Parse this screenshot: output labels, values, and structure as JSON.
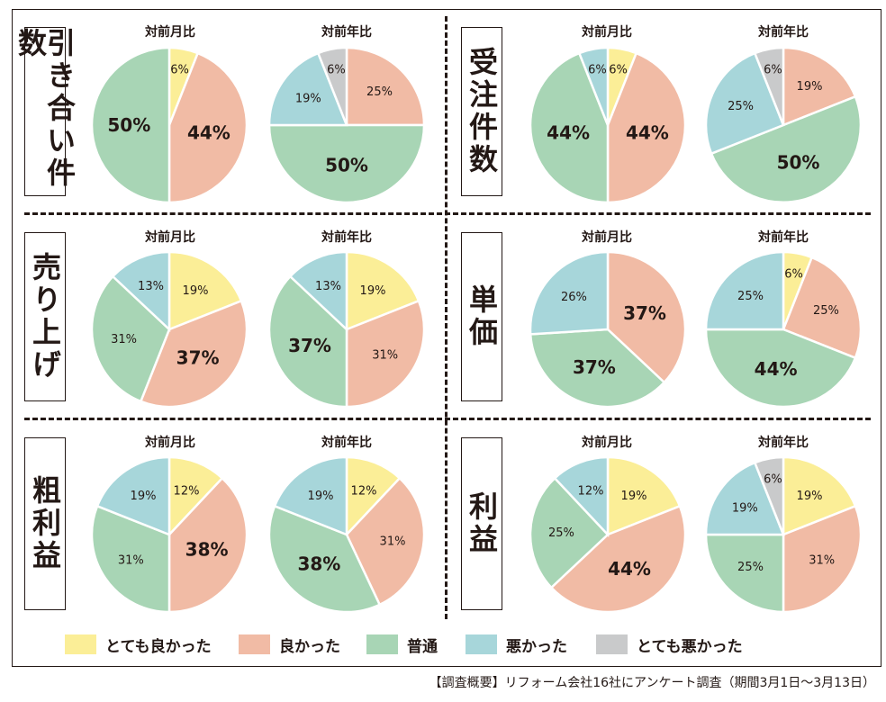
{
  "colors": {
    "very_good": "#fbee97",
    "good": "#f1bba5",
    "normal": "#a8d5b5",
    "bad": "#a7d6da",
    "very_bad": "#c9cacb"
  },
  "legend": [
    {
      "key": "very_good",
      "label": "とても良かった"
    },
    {
      "key": "good",
      "label": "良かった"
    },
    {
      "key": "normal",
      "label": "普通"
    },
    {
      "key": "bad",
      "label": "悪かった"
    },
    {
      "key": "very_bad",
      "label": "とても悪かった"
    }
  ],
  "footnote": "【調査概要】リフォーム会社16社にアンケート調査（期間3月1日～3月13日）",
  "chart_data": [
    {
      "type": "pie",
      "metric": "引き合い件数",
      "title": "対前月比",
      "slices": [
        {
          "key": "very_good",
          "value": 6,
          "label": "6%"
        },
        {
          "key": "good",
          "value": 44,
          "label": "44%"
        },
        {
          "key": "normal",
          "value": 50,
          "label": "50%"
        }
      ]
    },
    {
      "type": "pie",
      "metric": "引き合い件数",
      "title": "対前年比",
      "slices": [
        {
          "key": "good",
          "value": 25,
          "label": "25%"
        },
        {
          "key": "normal",
          "value": 50,
          "label": "50%"
        },
        {
          "key": "bad",
          "value": 19,
          "label": "19%"
        },
        {
          "key": "very_bad",
          "value": 6,
          "label": "6%"
        }
      ]
    },
    {
      "type": "pie",
      "metric": "受注件数",
      "title": "対前月比",
      "slices": [
        {
          "key": "very_good",
          "value": 6,
          "label": "6%"
        },
        {
          "key": "good",
          "value": 44,
          "label": "44%"
        },
        {
          "key": "normal",
          "value": 44,
          "label": "44%"
        },
        {
          "key": "bad",
          "value": 6,
          "label": "6%"
        }
      ]
    },
    {
      "type": "pie",
      "metric": "受注件数",
      "title": "対前年比",
      "slices": [
        {
          "key": "good",
          "value": 19,
          "label": "19%"
        },
        {
          "key": "normal",
          "value": 50,
          "label": "50%"
        },
        {
          "key": "bad",
          "value": 25,
          "label": "25%"
        },
        {
          "key": "very_bad",
          "value": 6,
          "label": "6%"
        }
      ]
    },
    {
      "type": "pie",
      "metric": "売り上げ",
      "title": "対前月比",
      "slices": [
        {
          "key": "very_good",
          "value": 19,
          "label": "19%"
        },
        {
          "key": "good",
          "value": 37,
          "label": "37%"
        },
        {
          "key": "normal",
          "value": 31,
          "label": "31%"
        },
        {
          "key": "bad",
          "value": 13,
          "label": "13%"
        }
      ]
    },
    {
      "type": "pie",
      "metric": "売り上げ",
      "title": "対前年比",
      "slices": [
        {
          "key": "very_good",
          "value": 19,
          "label": "19%"
        },
        {
          "key": "good",
          "value": 31,
          "label": "31%"
        },
        {
          "key": "normal",
          "value": 37,
          "label": "37%"
        },
        {
          "key": "bad",
          "value": 13,
          "label": "13%"
        }
      ]
    },
    {
      "type": "pie",
      "metric": "単価",
      "title": "対前月比",
      "slices": [
        {
          "key": "good",
          "value": 37,
          "label": "37%"
        },
        {
          "key": "normal",
          "value": 37,
          "label": "37%"
        },
        {
          "key": "bad",
          "value": 26,
          "label": "26%"
        }
      ]
    },
    {
      "type": "pie",
      "metric": "単価",
      "title": "対前年比",
      "slices": [
        {
          "key": "very_good",
          "value": 6,
          "label": "6%"
        },
        {
          "key": "good",
          "value": 25,
          "label": "25%"
        },
        {
          "key": "normal",
          "value": 44,
          "label": "44%"
        },
        {
          "key": "bad",
          "value": 25,
          "label": "25%"
        }
      ]
    },
    {
      "type": "pie",
      "metric": "粗利益",
      "title": "対前月比",
      "slices": [
        {
          "key": "very_good",
          "value": 12,
          "label": "12%"
        },
        {
          "key": "good",
          "value": 38,
          "label": "38%"
        },
        {
          "key": "normal",
          "value": 31,
          "label": "31%"
        },
        {
          "key": "bad",
          "value": 19,
          "label": "19%"
        }
      ]
    },
    {
      "type": "pie",
      "metric": "粗利益",
      "title": "対前年比",
      "slices": [
        {
          "key": "very_good",
          "value": 12,
          "label": "12%"
        },
        {
          "key": "good",
          "value": 31,
          "label": "31%"
        },
        {
          "key": "normal",
          "value": 38,
          "label": "38%"
        },
        {
          "key": "bad",
          "value": 19,
          "label": "19%"
        }
      ]
    },
    {
      "type": "pie",
      "metric": "利益",
      "title": "対前月比",
      "slices": [
        {
          "key": "very_good",
          "value": 19,
          "label": "19%"
        },
        {
          "key": "good",
          "value": 44,
          "label": "44%"
        },
        {
          "key": "normal",
          "value": 25,
          "label": "25%"
        },
        {
          "key": "bad",
          "value": 12,
          "label": "12%"
        }
      ]
    },
    {
      "type": "pie",
      "metric": "利益",
      "title": "対前年比",
      "slices": [
        {
          "key": "very_good",
          "value": 19,
          "label": "19%"
        },
        {
          "key": "good",
          "value": 31,
          "label": "31%"
        },
        {
          "key": "normal",
          "value": 25,
          "label": "25%"
        },
        {
          "key": "bad",
          "value": 19,
          "label": "19%"
        },
        {
          "key": "very_bad",
          "value": 6,
          "label": "6%"
        }
      ]
    }
  ]
}
